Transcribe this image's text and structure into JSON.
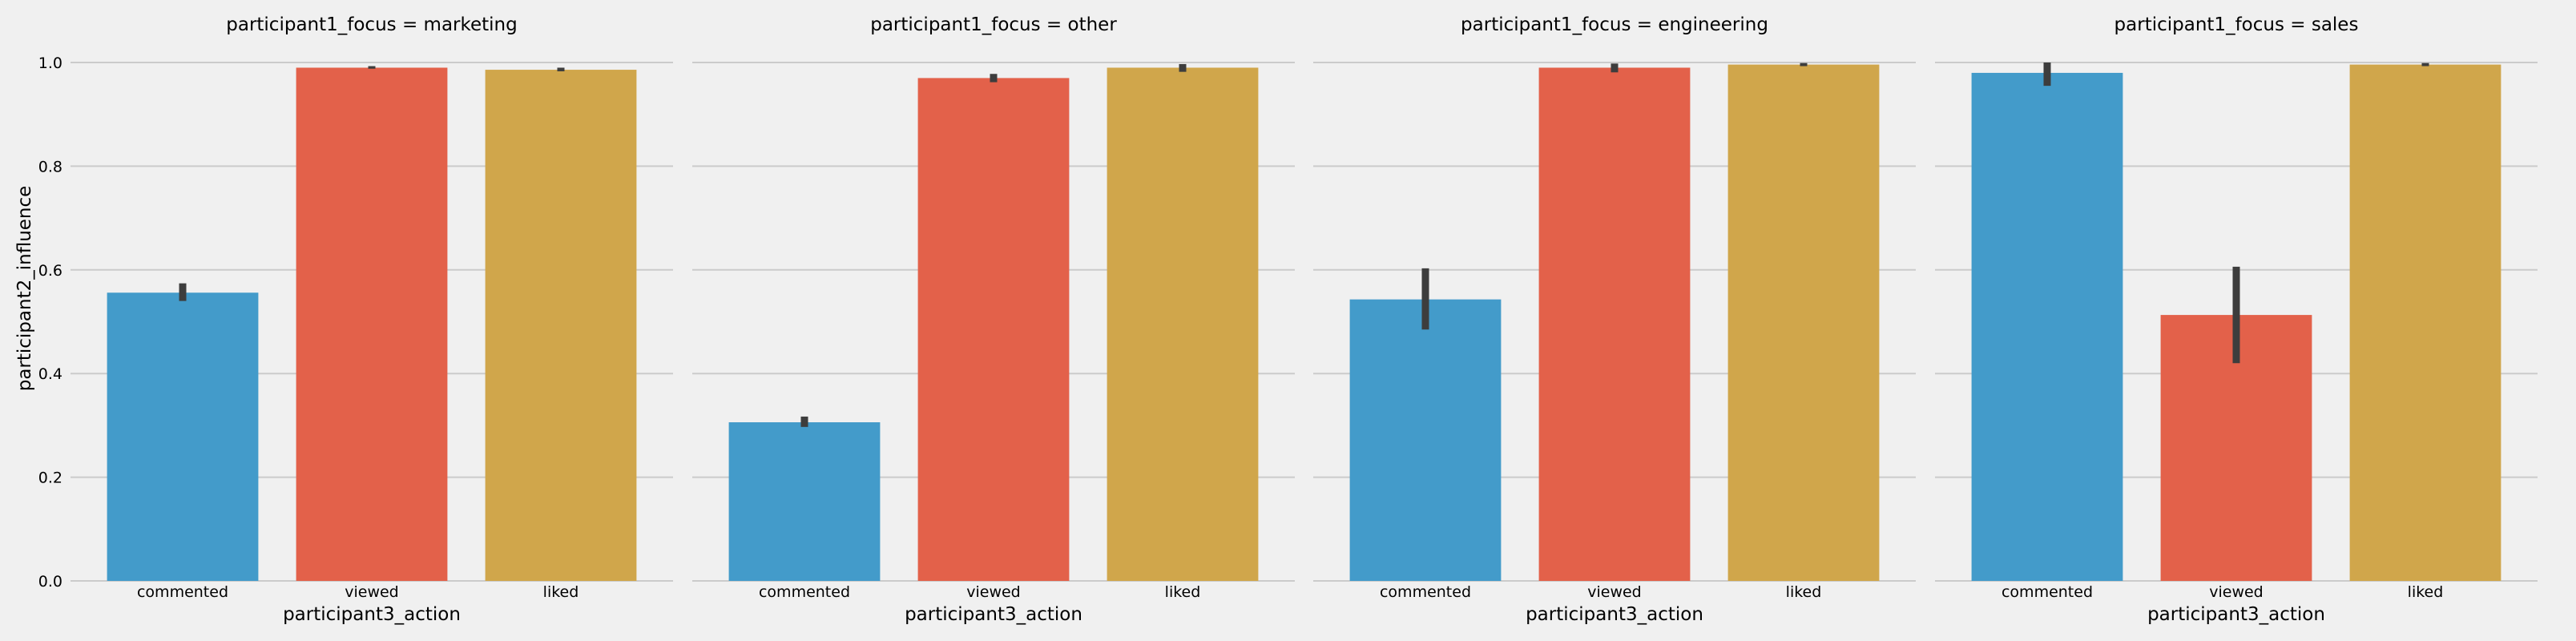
{
  "chart_data": {
    "type": "bar",
    "ylabel": "participant2_influence",
    "xlabel": "participant3_action",
    "ylim": [
      0,
      1.0
    ],
    "yticks": [
      0.0,
      0.2,
      0.4,
      0.6,
      0.8,
      1.0
    ],
    "ytick_labels": [
      "0.0",
      "0.2",
      "0.4",
      "0.6",
      "0.8",
      "1.0"
    ],
    "categories": [
      "commented",
      "viewed",
      "liked"
    ],
    "colors": [
      "#439bca",
      "#e3614a",
      "#d0a64b"
    ],
    "background": "#f0f0f0",
    "grid": "horizontal",
    "panels": [
      {
        "title": "participant1_focus = marketing",
        "values": [
          0.556,
          0.99,
          0.986
        ],
        "err_low": [
          0.54,
          0.988,
          0.983
        ],
        "err_high": [
          0.574,
          0.993,
          0.99
        ]
      },
      {
        "title": "participant1_focus = other",
        "values": [
          0.306,
          0.97,
          0.99
        ],
        "err_low": [
          0.297,
          0.962,
          0.982
        ],
        "err_high": [
          0.317,
          0.978,
          0.997
        ]
      },
      {
        "title": "participant1_focus = engineering",
        "values": [
          0.543,
          0.99,
          0.996
        ],
        "err_low": [
          0.485,
          0.981,
          0.993
        ],
        "err_high": [
          0.603,
          0.998,
          0.999
        ]
      },
      {
        "title": "participant1_focus = sales",
        "values": [
          0.98,
          0.513,
          0.996
        ],
        "err_low": [
          0.955,
          0.42,
          0.993
        ],
        "err_high": [
          1.0,
          0.606,
          0.999
        ]
      }
    ]
  }
}
